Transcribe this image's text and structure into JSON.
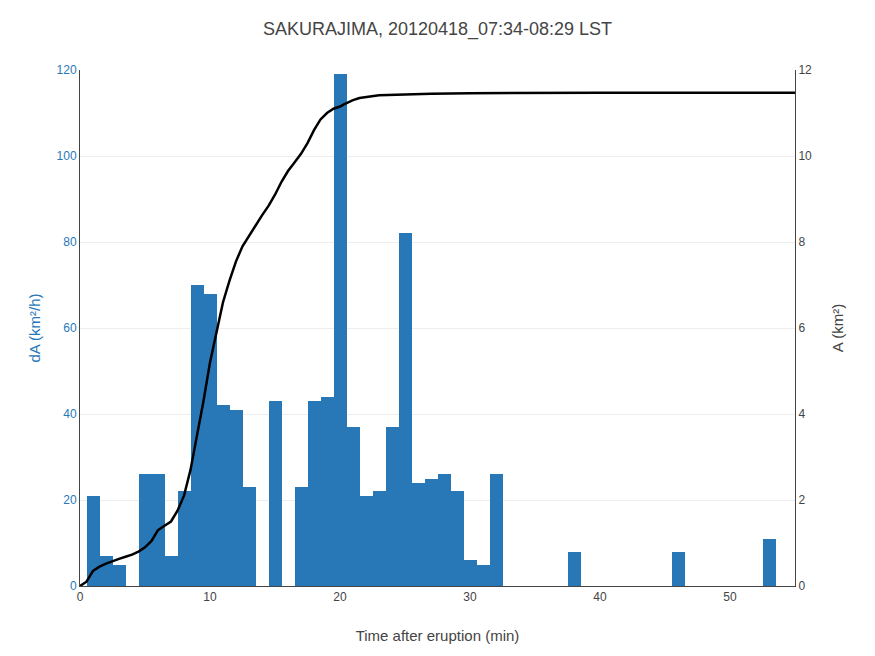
{
  "chart_data": {
    "type": "bar",
    "title": "SAKURAJIMA, 20120418_07:34-08:29 LST",
    "x_label": "Time after eruption (min)",
    "y_label": "dA (km²/h)",
    "y2_label": "A (km²)",
    "series": [
      {
        "type": "bar",
        "color": "#2878b8",
        "x": [
          1,
          2,
          3,
          4,
          5,
          6,
          7,
          8,
          9,
          10,
          11,
          12,
          13,
          14,
          15,
          16,
          17,
          18,
          19,
          20,
          21,
          22,
          23,
          24,
          25,
          26,
          27,
          28,
          29,
          30,
          31,
          32,
          38,
          46,
          53
        ],
        "values": [
          21,
          7,
          5,
          0,
          26,
          26,
          7,
          22,
          70,
          68,
          42,
          41,
          23,
          0,
          43,
          0,
          23,
          43,
          44,
          119,
          37,
          21,
          22,
          37,
          82,
          24,
          25,
          26,
          22,
          6,
          5,
          26,
          8,
          8,
          11
        ]
      },
      {
        "type": "line",
        "color": "#000000",
        "axis": "y2",
        "x": [
          0,
          0.5,
          1,
          1.5,
          2,
          2.5,
          3,
          3.5,
          4,
          4.5,
          5,
          5.5,
          6,
          6.5,
          7,
          7.5,
          8,
          8.5,
          9,
          9.5,
          10,
          10.5,
          11,
          11.5,
          12,
          12.5,
          13,
          13.5,
          14,
          14.5,
          15,
          15.5,
          16,
          16.5,
          17,
          17.5,
          18,
          18.5,
          19,
          19.5,
          20,
          20.3,
          21,
          21.5,
          22,
          22.5,
          23,
          25,
          27,
          30,
          35,
          40,
          45,
          50,
          55
        ],
        "values": [
          0,
          0.1,
          0.35,
          0.45,
          0.52,
          0.58,
          0.63,
          0.68,
          0.73,
          0.8,
          0.9,
          1.05,
          1.3,
          1.4,
          1.5,
          1.75,
          2.1,
          2.7,
          3.5,
          4.3,
          5.2,
          5.9,
          6.6,
          7.1,
          7.55,
          7.9,
          8.15,
          8.4,
          8.62,
          8.84,
          9.1,
          9.4,
          9.65,
          9.85,
          10.05,
          10.3,
          10.6,
          10.85,
          11.0,
          11.1,
          11.15,
          11.2,
          11.3,
          11.35,
          11.37,
          11.39,
          11.41,
          11.43,
          11.45,
          11.46,
          11.47,
          11.47,
          11.47,
          11.47,
          11.47
        ]
      }
    ],
    "xlim": [
      0,
      55
    ],
    "xticks": [
      0,
      10,
      20,
      30,
      40,
      50
    ],
    "ylim": [
      0,
      120
    ],
    "yticks": [
      0,
      20,
      40,
      60,
      80,
      100,
      120
    ],
    "y2lim": [
      0,
      12
    ],
    "y2ticks": [
      0,
      2,
      4,
      6,
      8,
      10,
      12
    ],
    "grid": true
  }
}
